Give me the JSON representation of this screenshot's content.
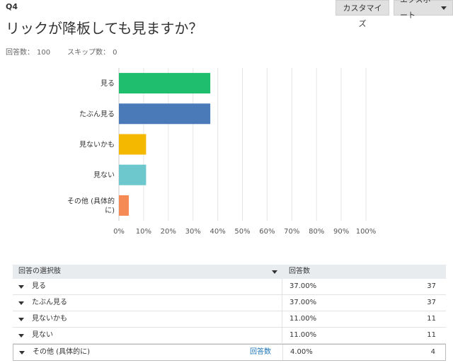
{
  "header": {
    "question_no": "Q4",
    "title": "リックが降板しても見ますか？",
    "responses_label": "回答数：",
    "responses_value": "100",
    "skipped_label": "スキップ数：",
    "skipped_value": "0"
  },
  "toolbar": {
    "customize_label": "カスタマイズ",
    "export_label": "エクスポート"
  },
  "chart_data": {
    "type": "bar",
    "orientation": "horizontal",
    "categories": [
      "見る",
      "たぶん見る",
      "見ないかも",
      "見ない",
      "その他 (具体的に)"
    ],
    "category_lines": [
      [
        "見る"
      ],
      [
        "たぶん見る"
      ],
      [
        "見ないかも"
      ],
      [
        "見ない"
      ],
      [
        "その他 (具体的",
        "に)"
      ]
    ],
    "values": [
      37,
      37,
      11,
      11,
      4
    ],
    "colors": [
      "#1ebe6e",
      "#4a7ab8",
      "#f5b800",
      "#6cc8cc",
      "#f58a55"
    ],
    "xlim": [
      0,
      100
    ],
    "xticks": [
      "0%",
      "10%",
      "20%",
      "30%",
      "40%",
      "50%",
      "60%",
      "70%",
      "80%",
      "90%",
      "100%"
    ],
    "grid": true
  },
  "table": {
    "header_choice": "回答の選択肢",
    "header_responses": "回答数",
    "link_label": "回答数",
    "rows": [
      {
        "choice": "見る",
        "pct": "37.00%",
        "count": "37"
      },
      {
        "choice": "たぶん見る",
        "pct": "37.00%",
        "count": "37"
      },
      {
        "choice": "見ないかも",
        "pct": "11.00%",
        "count": "11"
      },
      {
        "choice": "見ない",
        "pct": "11.00%",
        "count": "11"
      },
      {
        "choice": "その他 (具体的に)",
        "pct": "4.00%",
        "count": "4"
      }
    ]
  }
}
